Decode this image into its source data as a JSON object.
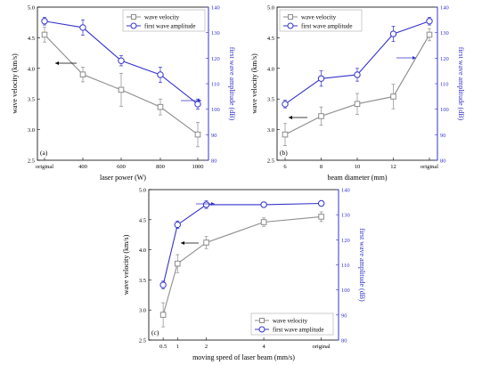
{
  "colors": {
    "velocity": "#8c8c8c",
    "amplitude": "#3333cc",
    "axis": "#000000"
  },
  "chart_data": [
    {
      "type": "line",
      "panel_label": "(a)",
      "xlabel": "laser power (W)",
      "categories": [
        "original",
        "400",
        "600",
        "800",
        "1000"
      ],
      "y_left": {
        "label": "wave velocity (km/s)",
        "lim": [
          2.5,
          5.0
        ],
        "ticks": [
          "2.5",
          "3.0",
          "3.5",
          "4.0",
          "4.5",
          "5.0"
        ]
      },
      "y_right": {
        "label": "first wave amplitude (dB)",
        "lim": [
          80,
          140
        ],
        "ticks": [
          "80",
          "90",
          "100",
          "110",
          "120",
          "130",
          "140"
        ]
      },
      "legend": {
        "position": "top-right",
        "entries": [
          "wave velocity",
          "first wave amplitude"
        ]
      },
      "series": [
        {
          "name": "wave velocity",
          "axis": "left",
          "marker": "square",
          "values": [
            4.55,
            3.9,
            3.65,
            3.37,
            2.92
          ],
          "errors": [
            0.12,
            0.12,
            0.27,
            0.13,
            0.2
          ]
        },
        {
          "name": "first wave amplitude",
          "axis": "right",
          "marker": "circle",
          "values": [
            134.5,
            132.0,
            119.0,
            113.5,
            102.0
          ],
          "errors": [
            1.5,
            3.0,
            2.0,
            3.0,
            2.0
          ]
        }
      ],
      "arrows": [
        {
          "direction": "left"
        },
        {
          "direction": "right"
        }
      ]
    },
    {
      "type": "line",
      "panel_label": "(b)",
      "xlabel": "beam diameter (mm)",
      "categories": [
        "6",
        "8",
        "10",
        "12",
        "original"
      ],
      "y_left": {
        "label": "wave velocity (km/s)",
        "lim": [
          2.5,
          5.0
        ],
        "ticks": [
          "2.5",
          "3.0",
          "3.5",
          "4.0",
          "4.5",
          "5.0"
        ]
      },
      "y_right": {
        "label": "first wave amplitude (dB)",
        "lim": [
          80,
          140
        ],
        "ticks": [
          "80",
          "90",
          "100",
          "110",
          "120",
          "130",
          "140"
        ]
      },
      "legend": {
        "position": "top-left",
        "entries": [
          "wave velocity",
          "first wave amplitude"
        ]
      },
      "series": [
        {
          "name": "wave velocity",
          "axis": "left",
          "marker": "square",
          "values": [
            2.92,
            3.22,
            3.42,
            3.54,
            4.55
          ],
          "errors": [
            0.18,
            0.15,
            0.17,
            0.2,
            0.1
          ]
        },
        {
          "name": "first wave amplitude",
          "axis": "right",
          "marker": "circle",
          "values": [
            102.0,
            112.0,
            113.5,
            129.5,
            134.5
          ],
          "errors": [
            1.5,
            3.0,
            2.5,
            3.0,
            1.5
          ]
        }
      ],
      "arrows": [
        {
          "direction": "left"
        },
        {
          "direction": "right"
        }
      ]
    },
    {
      "type": "line",
      "panel_label": "(c)",
      "xlabel": "moving speed of laser beam (mm/s)",
      "x_positions": [
        0.5,
        1,
        2,
        4,
        6
      ],
      "x_tick_labels": [
        "0.5",
        "1",
        "2",
        "4",
        "original"
      ],
      "xlim": [
        0,
        6.6
      ],
      "y_left": {
        "label": "wave velocity (km/s)",
        "lim": [
          2.5,
          5.0
        ],
        "ticks": [
          "2.5",
          "3.0",
          "3.5",
          "4.0",
          "4.5",
          "5.0"
        ]
      },
      "y_right": {
        "label": "first wave amplitude (dB)",
        "lim": [
          80,
          140
        ],
        "ticks": [
          "80",
          "90",
          "100",
          "110",
          "120",
          "130",
          "140"
        ]
      },
      "legend": {
        "position": "bottom-right",
        "entries": [
          "wave velocity",
          "first wave amplitude"
        ]
      },
      "series": [
        {
          "name": "wave velocity",
          "axis": "left",
          "marker": "square",
          "values": [
            2.92,
            3.77,
            4.12,
            4.46,
            4.55
          ],
          "errors": [
            0.2,
            0.15,
            0.1,
            0.07,
            0.08
          ]
        },
        {
          "name": "first wave amplitude",
          "axis": "right",
          "marker": "circle",
          "values": [
            102.0,
            126.0,
            134.0,
            134.0,
            134.5
          ],
          "errors": [
            1.5,
            1.5,
            1.5,
            1.0,
            1.0
          ]
        }
      ],
      "arrows": [
        {
          "direction": "left"
        },
        {
          "direction": "right"
        }
      ]
    }
  ]
}
